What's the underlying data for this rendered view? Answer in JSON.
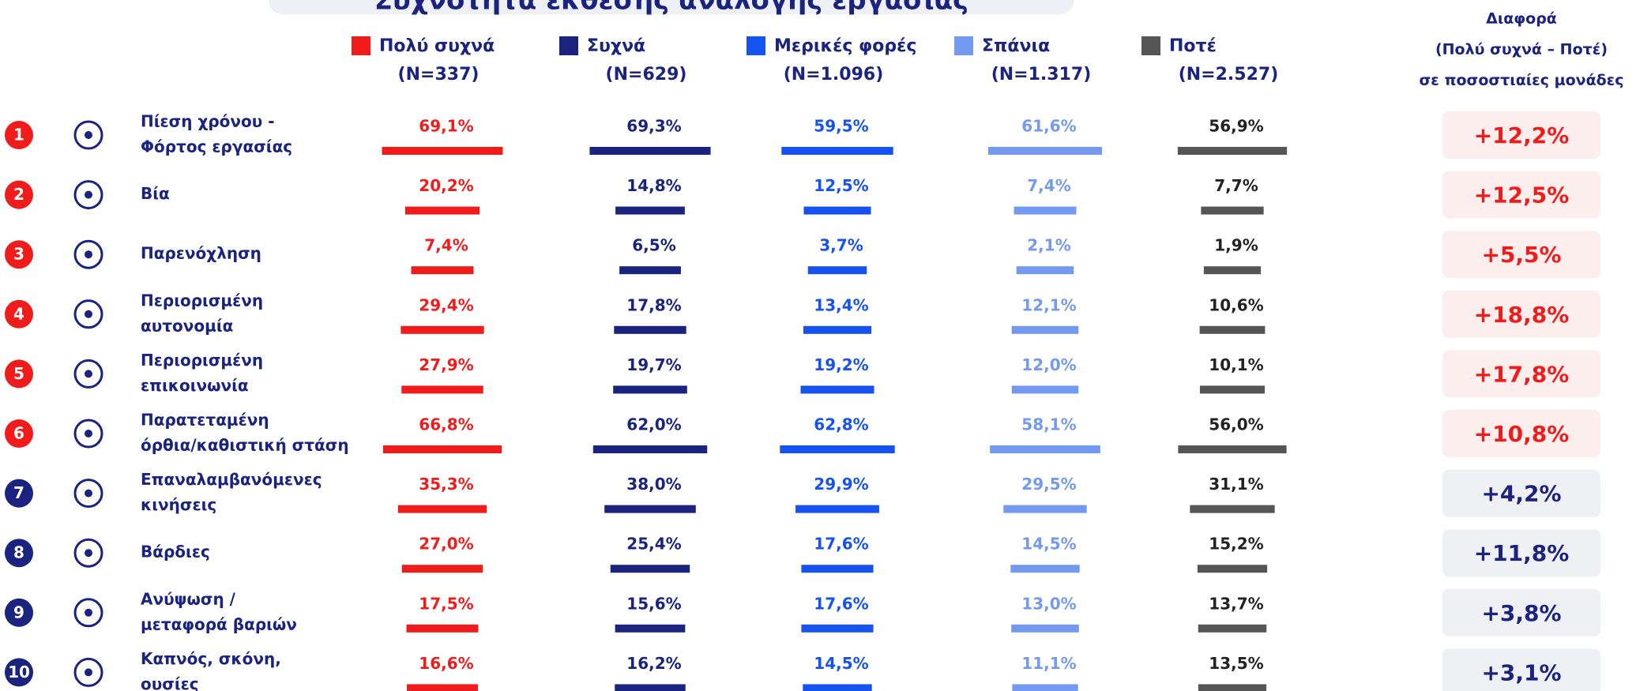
{
  "title": "Συχνότητα έκθεσης ανάλογης εργασίας",
  "columns": [
    {
      "name": "Πολύ συχνά",
      "n": "(N=337)",
      "color": "#f01c1c"
    },
    {
      "name": "Συχνά",
      "n": "(N=629)",
      "color": "#1a237e"
    },
    {
      "name": "Μερικές φορές",
      "n": "(N=1.096)",
      "color": "#1652f0"
    },
    {
      "name": "Σπάνια",
      "n": "(N=1.317)",
      "color": "#7399f0"
    },
    {
      "name": "Ποτέ",
      "n": "(N=2.527)",
      "color": "#555555"
    }
  ],
  "diff_header": [
    "Διαφορά",
    "(Πολύ συχνά – Ποτέ)",
    "σε ποσοστιαίες μονάδες"
  ],
  "rows": [
    {
      "rank": "1",
      "label": [
        "Πίεση χρόνου -",
        "Φόρτος εργασίας"
      ],
      "values": [
        69.1,
        69.3,
        59.5,
        61.6,
        56.9
      ],
      "value_labels": [
        "69,1%",
        "69,3%",
        "59,5%",
        "61,6%",
        "56,9%"
      ],
      "diff": 12.2,
      "diff_label": "+12,2%",
      "highlight": true
    },
    {
      "rank": "2",
      "label": [
        "Βία"
      ],
      "values": [
        20.2,
        14.8,
        12.5,
        7.4,
        7.7
      ],
      "value_labels": [
        "20,2%",
        "14,8%",
        "12,5%",
        "7,4%",
        "7,7%"
      ],
      "diff": 12.5,
      "diff_label": "+12,5%",
      "highlight": true
    },
    {
      "rank": "3",
      "label": [
        "Παρενόχληση"
      ],
      "values": [
        7.4,
        6.5,
        3.7,
        2.1,
        1.9
      ],
      "value_labels": [
        "7,4%",
        "6,5%",
        "3,7%",
        "2,1%",
        "1,9%"
      ],
      "diff": 5.5,
      "diff_label": "+5,5%",
      "highlight": true
    },
    {
      "rank": "4",
      "label": [
        "Περιορισμένη",
        "αυτονομία"
      ],
      "values": [
        29.4,
        17.8,
        13.4,
        12.1,
        10.6
      ],
      "value_labels": [
        "29,4%",
        "17,8%",
        "13,4%",
        "12,1%",
        "10,6%"
      ],
      "diff": 18.8,
      "diff_label": "+18,8%",
      "highlight": true
    },
    {
      "rank": "5",
      "label": [
        "Περιορισμένη",
        "επικοινωνία"
      ],
      "values": [
        27.9,
        19.7,
        19.2,
        12.0,
        10.1
      ],
      "value_labels": [
        "27,9%",
        "19,7%",
        "19,2%",
        "12,0%",
        "10,1%"
      ],
      "diff": 17.8,
      "diff_label": "+17,8%",
      "highlight": true
    },
    {
      "rank": "6",
      "label": [
        "Παρατεταμένη",
        "όρθια/καθιστική στάση"
      ],
      "values": [
        66.8,
        62.0,
        62.8,
        58.1,
        56.0
      ],
      "value_labels": [
        "66,8%",
        "62,0%",
        "62,8%",
        "58,1%",
        "56,0%"
      ],
      "diff": 10.8,
      "diff_label": "+10,8%",
      "highlight": true
    },
    {
      "rank": "7",
      "label": [
        "Επαναλαμβανόμενες",
        "κινήσεις"
      ],
      "values": [
        35.3,
        38.0,
        29.9,
        29.5,
        31.1
      ],
      "value_labels": [
        "35,3%",
        "38,0%",
        "29,9%",
        "29,5%",
        "31,1%"
      ],
      "diff": 4.2,
      "diff_label": "+4,2%",
      "highlight": false
    },
    {
      "rank": "8",
      "label": [
        "Βάρδιες"
      ],
      "values": [
        27.0,
        25.4,
        17.6,
        14.5,
        15.2
      ],
      "value_labels": [
        "27,0%",
        "25,4%",
        "17,6%",
        "14,5%",
        "15,2%"
      ],
      "diff": 11.8,
      "diff_label": "+11,8%",
      "highlight": false
    },
    {
      "rank": "9",
      "label": [
        "Ανύψωση /",
        "μεταφορά βαριών"
      ],
      "values": [
        17.5,
        15.6,
        17.6,
        13.0,
        13.7
      ],
      "value_labels": [
        "17,5%",
        "15,6%",
        "17,6%",
        "13,0%",
        "13,7%"
      ],
      "diff": 3.8,
      "diff_label": "+3,8%",
      "highlight": false
    },
    {
      "rank": "10",
      "label": [
        "Καπνός, σκόνη,",
        "ουσίες"
      ],
      "values": [
        16.6,
        16.2,
        14.5,
        11.1,
        13.5
      ],
      "value_labels": [
        "16,6%",
        "16,2%",
        "14,5%",
        "11,1%",
        "13,5%"
      ],
      "diff": 3.1,
      "diff_label": "+3,1%",
      "highlight": false
    }
  ]
}
